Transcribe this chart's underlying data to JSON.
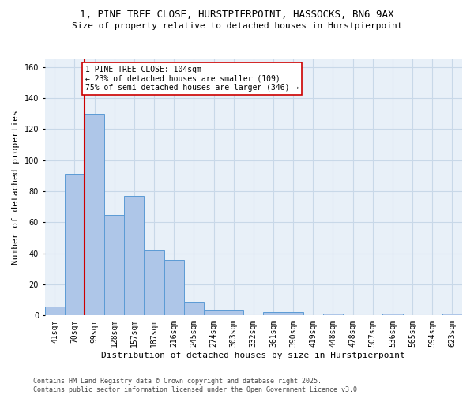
{
  "title_line1": "1, PINE TREE CLOSE, HURSTPIERPOINT, HASSOCKS, BN6 9AX",
  "title_line2": "Size of property relative to detached houses in Hurstpierpoint",
  "xlabel": "Distribution of detached houses by size in Hurstpierpoint",
  "ylabel": "Number of detached properties",
  "categories": [
    "41sqm",
    "70sqm",
    "99sqm",
    "128sqm",
    "157sqm",
    "187sqm",
    "216sqm",
    "245sqm",
    "274sqm",
    "303sqm",
    "332sqm",
    "361sqm",
    "390sqm",
    "419sqm",
    "448sqm",
    "478sqm",
    "507sqm",
    "536sqm",
    "565sqm",
    "594sqm",
    "623sqm"
  ],
  "values": [
    6,
    91,
    130,
    65,
    77,
    42,
    36,
    9,
    3,
    3,
    0,
    2,
    2,
    0,
    1,
    0,
    0,
    1,
    0,
    0,
    1
  ],
  "bar_color": "#aec6e8",
  "bar_edge_color": "#5b9bd5",
  "vline_color": "#cc0000",
  "annotation_text": "1 PINE TREE CLOSE: 104sqm\n← 23% of detached houses are smaller (109)\n75% of semi-detached houses are larger (346) →",
  "annotation_box_color": "#cc0000",
  "annotation_bg": "white",
  "ylim": [
    0,
    165
  ],
  "yticks": [
    0,
    20,
    40,
    60,
    80,
    100,
    120,
    140,
    160
  ],
  "grid_color": "#c8d8e8",
  "bg_color": "#e8f0f8",
  "footer_line1": "Contains HM Land Registry data © Crown copyright and database right 2025.",
  "footer_line2": "Contains public sector information licensed under the Open Government Licence v3.0.",
  "title_fontsize": 9,
  "subtitle_fontsize": 8,
  "axis_label_fontsize": 8,
  "tick_fontsize": 7,
  "annotation_fontsize": 7,
  "footer_fontsize": 6
}
